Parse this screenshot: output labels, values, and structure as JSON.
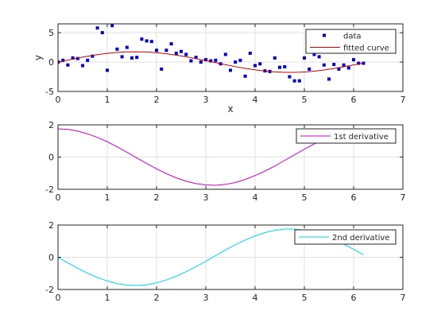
{
  "figure": {
    "background": "#ffffff"
  },
  "colors": {
    "data_points": "#0000cc",
    "fitted_curve": "#cc0000",
    "first_derivative": "#cc00cc",
    "second_derivative": "#00d8e0",
    "axes": "#262626",
    "grid": "#e0e0e0"
  },
  "chart_data": [
    {
      "type": "scatter+line",
      "xlabel": "x",
      "ylabel": "y",
      "xlim": [
        0,
        7
      ],
      "ylim": [
        -5,
        6.5
      ],
      "xticks": [
        0,
        1,
        2,
        3,
        4,
        5,
        6,
        7
      ],
      "yticks": [
        -5,
        0,
        5
      ],
      "grid": true,
      "legend": "top-right",
      "series": [
        {
          "name": "data",
          "kind": "markers",
          "color": "#0000cc",
          "x": [
            0.0,
            0.1,
            0.2,
            0.3,
            0.4,
            0.5,
            0.6,
            0.7,
            0.8,
            0.9,
            1.0,
            1.1,
            1.2,
            1.3,
            1.4,
            1.5,
            1.6,
            1.7,
            1.8,
            1.9,
            2.0,
            2.1,
            2.2,
            2.3,
            2.4,
            2.5,
            2.6,
            2.7,
            2.8,
            2.9,
            3.0,
            3.1,
            3.2,
            3.3,
            3.4,
            3.5,
            3.6,
            3.7,
            3.8,
            3.9,
            4.0,
            4.1,
            4.2,
            4.3,
            4.4,
            4.5,
            4.6,
            4.7,
            4.8,
            4.9,
            5.0,
            5.1,
            5.2,
            5.3,
            5.4,
            5.5,
            5.6,
            5.7,
            5.8,
            5.9,
            6.0,
            6.1,
            6.2
          ],
          "y": [
            0.0,
            0.3,
            -0.5,
            0.7,
            0.6,
            -0.6,
            0.3,
            1.0,
            5.8,
            5.0,
            -1.4,
            6.2,
            2.2,
            0.9,
            2.5,
            0.7,
            0.8,
            3.9,
            3.6,
            3.5,
            2.0,
            -1.2,
            2.0,
            3.1,
            1.5,
            1.8,
            1.3,
            0.2,
            0.8,
            0.0,
            0.4,
            0.2,
            0.3,
            -0.3,
            1.3,
            -1.4,
            0.0,
            0.3,
            -2.4,
            1.5,
            -0.6,
            -0.3,
            -1.5,
            -1.6,
            0.7,
            -0.9,
            -0.8,
            -2.5,
            -3.2,
            -3.2,
            0.7,
            -1.2,
            1.3,
            0.9,
            -0.5,
            -2.9,
            -0.4,
            -1.2,
            -0.5,
            -1.0,
            0.4,
            -0.2,
            -0.2
          ]
        },
        {
          "name": "fitted curve",
          "kind": "line",
          "color": "#cc0000",
          "x": [
            0.0,
            0.2,
            0.4,
            0.6,
            0.8,
            1.0,
            1.2,
            1.4,
            1.6,
            1.8,
            2.0,
            2.2,
            2.4,
            2.6,
            2.8,
            3.0,
            3.2,
            3.4,
            3.6,
            3.8,
            4.0,
            4.2,
            4.4,
            4.6,
            4.8,
            5.0,
            5.2,
            5.4,
            5.6,
            5.8,
            6.0,
            6.2
          ],
          "y": [
            0.0,
            0.35,
            0.68,
            0.99,
            1.26,
            1.47,
            1.64,
            1.73,
            1.75,
            1.71,
            1.59,
            1.41,
            1.18,
            0.9,
            0.59,
            0.25,
            -0.1,
            -0.45,
            -0.78,
            -1.07,
            -1.32,
            -1.53,
            -1.67,
            -1.75,
            -1.75,
            -1.68,
            -1.55,
            -1.35,
            -1.1,
            -0.81,
            -0.49,
            -0.15
          ]
        }
      ]
    },
    {
      "type": "line",
      "xlim": [
        0,
        7
      ],
      "ylim": [
        -2,
        2
      ],
      "xticks": [
        0,
        1,
        2,
        3,
        4,
        5,
        6,
        7
      ],
      "yticks": [
        -2,
        0,
        2
      ],
      "grid": true,
      "legend": "top-right",
      "series": [
        {
          "name": "1st derivative",
          "color": "#cc00cc",
          "x": [
            0.0,
            0.2,
            0.4,
            0.6,
            0.8,
            1.0,
            1.2,
            1.4,
            1.6,
            1.8,
            2.0,
            2.2,
            2.4,
            2.6,
            2.8,
            3.0,
            3.2,
            3.4,
            3.6,
            3.8,
            4.0,
            4.2,
            4.4,
            4.6,
            4.8,
            5.0,
            5.2,
            5.4,
            5.6,
            5.8,
            6.0,
            6.2
          ],
          "y": [
            1.75,
            1.72,
            1.61,
            1.44,
            1.22,
            0.95,
            0.63,
            0.3,
            -0.05,
            -0.4,
            -0.73,
            -1.03,
            -1.29,
            -1.5,
            -1.65,
            -1.73,
            -1.75,
            -1.7,
            -1.58,
            -1.39,
            -1.15,
            -0.87,
            -0.56,
            -0.21,
            0.14,
            0.49,
            0.81,
            1.1,
            1.35,
            1.55,
            1.69,
            1.75
          ]
        }
      ]
    },
    {
      "type": "line",
      "xlim": [
        0,
        7
      ],
      "ylim": [
        -2,
        2
      ],
      "xticks": [
        0,
        1,
        2,
        3,
        4,
        5,
        6,
        7
      ],
      "yticks": [
        -2,
        0,
        2
      ],
      "grid": true,
      "legend": "top-right",
      "series": [
        {
          "name": "2nd derivative",
          "color": "#00d8e0",
          "x": [
            0.0,
            0.2,
            0.4,
            0.6,
            0.8,
            1.0,
            1.2,
            1.4,
            1.6,
            1.8,
            2.0,
            2.2,
            2.4,
            2.6,
            2.8,
            3.0,
            3.2,
            3.4,
            3.6,
            3.8,
            4.0,
            4.2,
            4.4,
            4.6,
            4.8,
            5.0,
            5.2,
            5.4,
            5.6,
            5.8,
            6.0,
            6.2
          ],
          "y": [
            0.0,
            -0.35,
            -0.68,
            -0.99,
            -1.26,
            -1.47,
            -1.64,
            -1.73,
            -1.75,
            -1.71,
            -1.59,
            -1.41,
            -1.18,
            -0.9,
            -0.59,
            -0.25,
            0.1,
            0.45,
            0.78,
            1.07,
            1.32,
            1.53,
            1.67,
            1.75,
            1.75,
            1.68,
            1.55,
            1.35,
            1.1,
            0.81,
            0.49,
            0.15
          ]
        }
      ]
    }
  ]
}
